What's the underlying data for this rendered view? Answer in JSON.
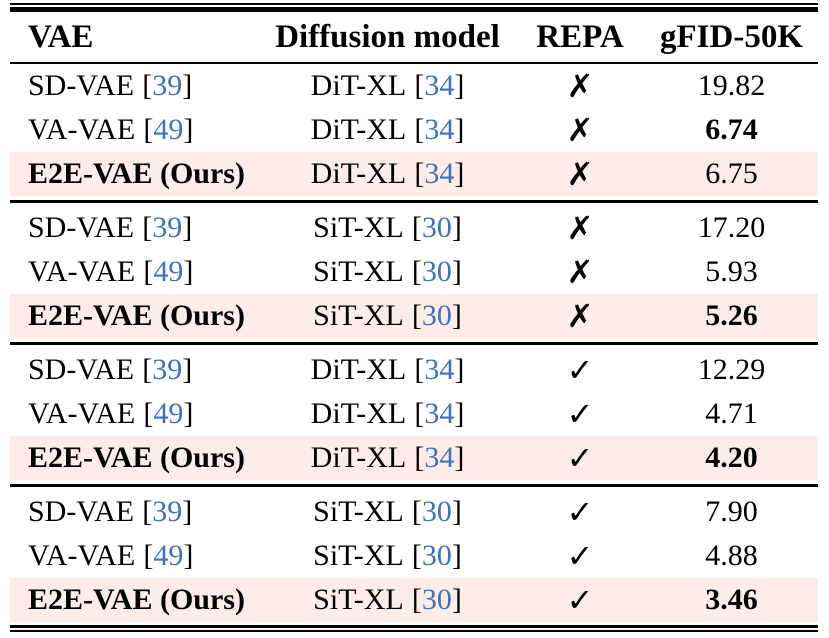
{
  "header": {
    "vae": "VAE",
    "diffusion_model": "Diffusion model",
    "repa": "REPA",
    "gfid": "gFID-50K"
  },
  "punct": {
    "open": "[",
    "close": "]"
  },
  "colors": {
    "highlight_row": "#fdece8",
    "citation_blue": "#3e73b9",
    "rule_black": "#000000",
    "text_black": "#000000"
  },
  "groups": [
    {
      "repa_enabled": false,
      "rows": [
        {
          "vae": "SD-VAE",
          "vae_cite": "39",
          "model": "DiT-XL",
          "model_cite": "34",
          "repa": "✗",
          "gfid": "19.82"
        },
        {
          "vae": "VA-VAE",
          "vae_cite": "49",
          "model": "DiT-XL",
          "model_cite": "34",
          "repa": "✗",
          "gfid": "6.74"
        },
        {
          "vae": "E2E-VAE (Ours)",
          "vae_cite": null,
          "model": "DiT-XL",
          "model_cite": "34",
          "repa": "✗",
          "gfid": "6.75"
        }
      ]
    },
    {
      "repa_enabled": false,
      "rows": [
        {
          "vae": "SD-VAE",
          "vae_cite": "39",
          "model": "SiT-XL",
          "model_cite": "30",
          "repa": "✗",
          "gfid": "17.20"
        },
        {
          "vae": "VA-VAE",
          "vae_cite": "49",
          "model": "SiT-XL",
          "model_cite": "30",
          "repa": "✗",
          "gfid": "5.93"
        },
        {
          "vae": "E2E-VAE (Ours)",
          "vae_cite": null,
          "model": "SiT-XL",
          "model_cite": "30",
          "repa": "✗",
          "gfid": "5.26"
        }
      ]
    },
    {
      "repa_enabled": true,
      "rows": [
        {
          "vae": "SD-VAE",
          "vae_cite": "39",
          "model": "DiT-XL",
          "model_cite": "34",
          "repa": "✓",
          "gfid": "12.29"
        },
        {
          "vae": "VA-VAE",
          "vae_cite": "49",
          "model": "DiT-XL",
          "model_cite": "34",
          "repa": "✓",
          "gfid": "4.71"
        },
        {
          "vae": "E2E-VAE (Ours)",
          "vae_cite": null,
          "model": "DiT-XL",
          "model_cite": "34",
          "repa": "✓",
          "gfid": "4.20"
        }
      ]
    },
    {
      "repa_enabled": true,
      "rows": [
        {
          "vae": "SD-VAE",
          "vae_cite": "39",
          "model": "SiT-XL",
          "model_cite": "30",
          "repa": "✓",
          "gfid": "7.90"
        },
        {
          "vae": "VA-VAE",
          "vae_cite": "49",
          "model": "SiT-XL",
          "model_cite": "30",
          "repa": "✓",
          "gfid": "4.88"
        },
        {
          "vae": "E2E-VAE (Ours)",
          "vae_cite": null,
          "model": "SiT-XL",
          "model_cite": "30",
          "repa": "✓",
          "gfid": "3.46"
        }
      ]
    }
  ]
}
